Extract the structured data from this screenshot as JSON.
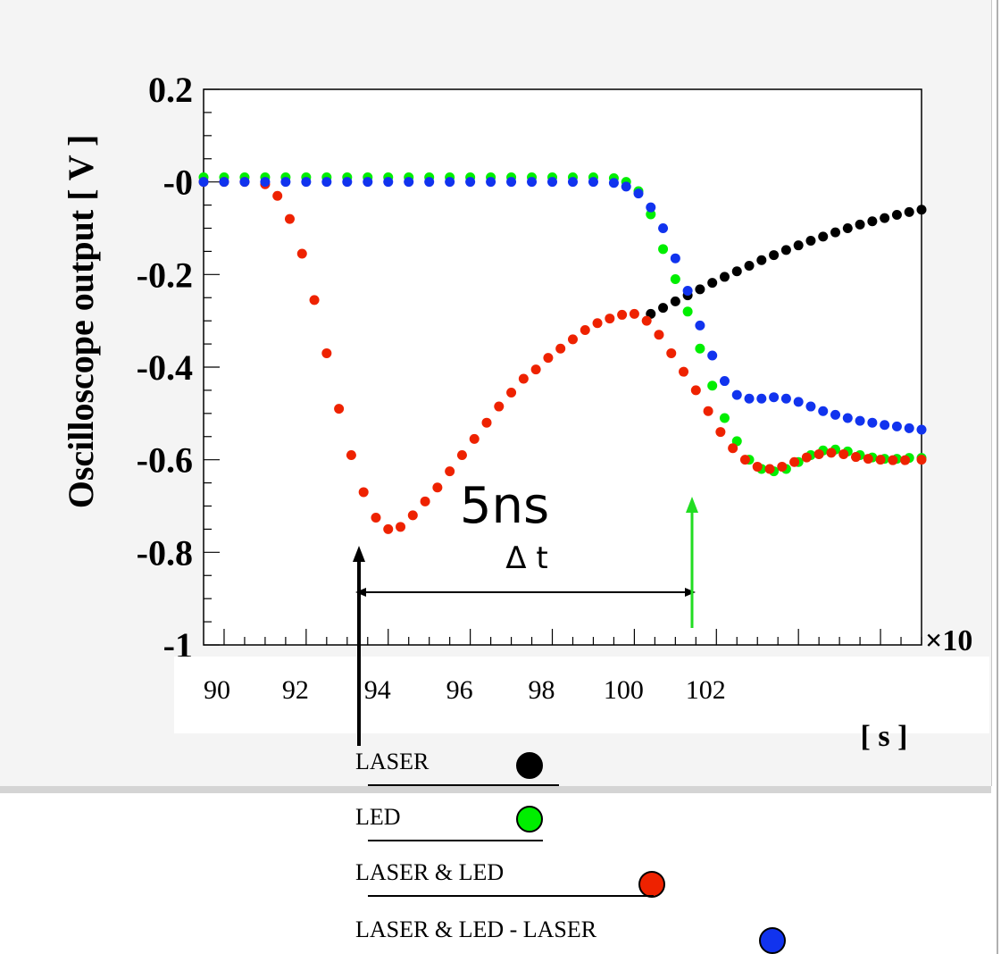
{
  "chart_data": {
    "type": "scatter",
    "ylabel": "Oscilloscope output [ V ]",
    "xlabel_fragment": "[ s ]",
    "x_exponent_label": "×10",
    "ylim": [
      -1.0,
      0.2
    ],
    "xlim": [
      89.5,
      107.0
    ],
    "yticks": [
      "0.2",
      "-0",
      "-0.2",
      "-0.4",
      "-0.6",
      "-0.8",
      "-1"
    ],
    "yticks_values": [
      0.2,
      0.0,
      -0.2,
      -0.4,
      -0.6,
      -0.8,
      -1.0
    ],
    "xticks": [
      "90",
      "92",
      "94",
      "96",
      "98",
      "100",
      "102"
    ],
    "xticks_values": [
      90,
      92,
      94,
      96,
      98,
      100,
      102
    ],
    "annotation_time": "5ns",
    "annotation_delta": "Δ t",
    "series": [
      {
        "name": "LASER",
        "color": "#000000",
        "x": [
          100.4,
          100.7,
          101.0,
          101.3,
          101.6,
          101.9,
          102.2,
          102.5,
          102.8,
          103.1,
          103.4,
          103.7,
          104.0,
          104.3,
          104.6,
          104.9,
          105.2,
          105.5,
          105.8,
          106.1,
          106.4,
          106.7,
          107.0
        ],
        "y": [
          -0.285,
          -0.272,
          -0.258,
          -0.245,
          -0.232,
          -0.218,
          -0.205,
          -0.193,
          -0.181,
          -0.169,
          -0.158,
          -0.147,
          -0.137,
          -0.127,
          -0.118,
          -0.109,
          -0.1,
          -0.092,
          -0.085,
          -0.078,
          -0.071,
          -0.065,
          -0.06
        ]
      },
      {
        "name": "LED",
        "color": "#00ee00",
        "x": [
          89.5,
          90.0,
          90.5,
          91.0,
          91.5,
          92.0,
          92.5,
          93.0,
          93.5,
          94.0,
          94.5,
          95.0,
          95.5,
          96.0,
          96.5,
          97.0,
          97.5,
          98.0,
          98.5,
          99.0,
          99.5,
          99.8,
          100.1,
          100.4,
          100.7,
          101.0,
          101.3,
          101.6,
          101.9,
          102.2,
          102.5,
          102.8,
          103.1,
          103.4,
          103.7,
          104.0,
          104.3,
          104.6,
          104.9,
          105.2,
          105.5,
          105.8,
          106.1,
          106.4,
          106.7,
          107.0
        ],
        "y": [
          0.01,
          0.01,
          0.01,
          0.01,
          0.01,
          0.01,
          0.01,
          0.01,
          0.01,
          0.01,
          0.01,
          0.01,
          0.01,
          0.01,
          0.01,
          0.01,
          0.01,
          0.01,
          0.01,
          0.01,
          0.008,
          0.0,
          -0.02,
          -0.07,
          -0.145,
          -0.21,
          -0.28,
          -0.36,
          -0.44,
          -0.51,
          -0.56,
          -0.6,
          -0.62,
          -0.625,
          -0.62,
          -0.605,
          -0.59,
          -0.58,
          -0.578,
          -0.582,
          -0.59,
          -0.595,
          -0.598,
          -0.598,
          -0.596,
          -0.596
        ]
      },
      {
        "name": "LASER & LED",
        "color": "#ee2200",
        "x": [
          89.5,
          90.0,
          90.5,
          91.0,
          91.3,
          91.6,
          91.9,
          92.2,
          92.5,
          92.8,
          93.1,
          93.4,
          93.7,
          94.0,
          94.3,
          94.6,
          94.9,
          95.2,
          95.5,
          95.8,
          96.1,
          96.4,
          96.7,
          97.0,
          97.3,
          97.6,
          97.9,
          98.2,
          98.5,
          98.8,
          99.1,
          99.4,
          99.7,
          100.0,
          100.3,
          100.6,
          100.9,
          101.2,
          101.5,
          101.8,
          102.1,
          102.4,
          102.7,
          103.0,
          103.3,
          103.6,
          103.9,
          104.2,
          104.5,
          104.8,
          105.1,
          105.4,
          105.7,
          106.0,
          106.3,
          106.6,
          107.0
        ],
        "y": [
          0.0,
          0.0,
          0.0,
          -0.005,
          -0.03,
          -0.08,
          -0.155,
          -0.255,
          -0.37,
          -0.49,
          -0.59,
          -0.67,
          -0.725,
          -0.75,
          -0.745,
          -0.72,
          -0.69,
          -0.66,
          -0.625,
          -0.59,
          -0.555,
          -0.52,
          -0.485,
          -0.455,
          -0.425,
          -0.405,
          -0.38,
          -0.36,
          -0.34,
          -0.32,
          -0.305,
          -0.295,
          -0.287,
          -0.285,
          -0.3,
          -0.33,
          -0.37,
          -0.41,
          -0.45,
          -0.495,
          -0.54,
          -0.575,
          -0.6,
          -0.615,
          -0.62,
          -0.615,
          -0.605,
          -0.595,
          -0.588,
          -0.585,
          -0.588,
          -0.594,
          -0.598,
          -0.6,
          -0.601,
          -0.601,
          -0.6
        ]
      },
      {
        "name": "LASER & LED - LASER",
        "color": "#1133ee",
        "x": [
          89.5,
          90.0,
          90.5,
          91.0,
          91.5,
          92.0,
          92.5,
          93.0,
          93.5,
          94.0,
          94.5,
          95.0,
          95.5,
          96.0,
          96.5,
          97.0,
          97.5,
          98.0,
          98.5,
          99.0,
          99.5,
          99.8,
          100.1,
          100.4,
          100.7,
          101.0,
          101.3,
          101.6,
          101.9,
          102.2,
          102.5,
          102.8,
          103.1,
          103.4,
          103.7,
          104.0,
          104.3,
          104.6,
          104.9,
          105.2,
          105.5,
          105.8,
          106.1,
          106.4,
          106.7,
          107.0
        ],
        "y": [
          0.0,
          0.0,
          0.0,
          0.0,
          0.0,
          0.0,
          0.0,
          0.0,
          0.0,
          0.0,
          0.0,
          0.0,
          0.0,
          0.0,
          0.0,
          0.0,
          0.0,
          0.0,
          0.0,
          0.0,
          -0.002,
          -0.01,
          -0.025,
          -0.055,
          -0.1,
          -0.165,
          -0.235,
          -0.31,
          -0.375,
          -0.43,
          -0.46,
          -0.468,
          -0.468,
          -0.465,
          -0.468,
          -0.475,
          -0.485,
          -0.495,
          -0.503,
          -0.51,
          -0.516,
          -0.52,
          -0.525,
          -0.528,
          -0.532,
          -0.535
        ]
      }
    ]
  },
  "legend": [
    {
      "label": "LASER",
      "color": "#000000"
    },
    {
      "label": "LED",
      "color": "#00ee00"
    },
    {
      "label": "LASER & LED",
      "color": "#ee2200"
    },
    {
      "label": "LASER & LED - LASER",
      "color": "#1133ee"
    }
  ]
}
